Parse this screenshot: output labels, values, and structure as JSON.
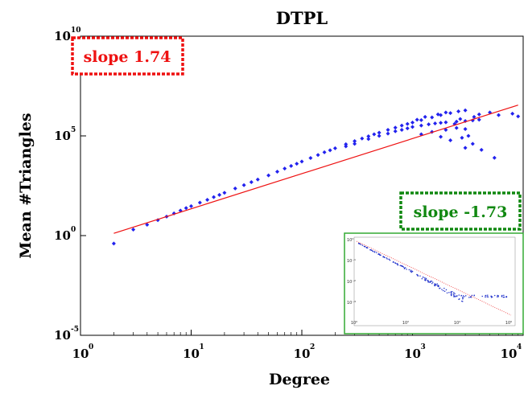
{
  "chart_data": {
    "type": "scatter",
    "title": "DTPL",
    "xlabel": "Degree",
    "ylabel": "Mean #Triangles",
    "xscale": "log",
    "yscale": "log",
    "xlim": [
      1,
      10000
    ],
    "ylim": [
      1e-05,
      10000000000
    ],
    "xticks": [
      1,
      10,
      100,
      1000,
      10000
    ],
    "xtick_base": "10",
    "xtick_exps": [
      "0",
      "1",
      "2",
      "3",
      "4"
    ],
    "yticks": [
      1e-05,
      1,
      100000,
      10000000000
    ],
    "ytick_base": "10",
    "ytick_exps": [
      "-5",
      "0",
      "5",
      "10"
    ],
    "grid": false,
    "series": [
      {
        "kind": "points",
        "color": "#2222ee",
        "points": [
          [
            2,
            0.4
          ],
          [
            3,
            2
          ],
          [
            4,
            3.5
          ],
          [
            5,
            6
          ],
          [
            6,
            9
          ],
          [
            7,
            13
          ],
          [
            8,
            18
          ],
          [
            9,
            24
          ],
          [
            10,
            30
          ],
          [
            12,
            45
          ],
          [
            14,
            62
          ],
          [
            16,
            85
          ],
          [
            18,
            110
          ],
          [
            20,
            140
          ],
          [
            25,
            230
          ],
          [
            30,
            340
          ],
          [
            35,
            480
          ],
          [
            40,
            650
          ],
          [
            50,
            1050
          ],
          [
            60,
            1600
          ],
          [
            70,
            2300
          ],
          [
            80,
            3100
          ],
          [
            90,
            4000
          ],
          [
            100,
            5200
          ],
          [
            120,
            7800
          ],
          [
            140,
            11000
          ],
          [
            160,
            15000
          ],
          [
            180,
            19000
          ],
          [
            200,
            24000
          ],
          [
            250,
            38000
          ],
          [
            300,
            55000
          ],
          [
            350,
            74000
          ],
          [
            400,
            95000
          ],
          [
            450,
            120000
          ],
          [
            500,
            145000
          ],
          [
            600,
            200000
          ],
          [
            700,
            260000
          ],
          [
            800,
            330000
          ],
          [
            900,
            400000
          ],
          [
            1000,
            470000
          ],
          [
            1200,
            620000
          ],
          [
            1500,
            850000
          ],
          [
            1800,
            1100000
          ],
          [
            2200,
            1400000
          ],
          [
            2600,
            1700000
          ],
          [
            3000,
            1900000
          ],
          [
            250,
            30000
          ],
          [
            300,
            40000
          ],
          [
            400,
            70000
          ],
          [
            500,
            100000
          ],
          [
            600,
            130000
          ],
          [
            700,
            170000
          ],
          [
            800,
            200000
          ],
          [
            900,
            240000
          ],
          [
            1000,
            280000
          ],
          [
            1200,
            330000
          ],
          [
            1400,
            380000
          ],
          [
            1600,
            420000
          ],
          [
            1800,
            450000
          ],
          [
            2000,
            480000
          ],
          [
            2500,
            520000
          ],
          [
            3000,
            560000
          ],
          [
            3500,
            600000
          ],
          [
            4000,
            650000
          ],
          [
            1200,
            120000
          ],
          [
            1500,
            160000
          ],
          [
            2000,
            200000
          ],
          [
            2500,
            250000
          ],
          [
            3000,
            220000
          ],
          [
            1800,
            90000
          ],
          [
            2200,
            60000
          ],
          [
            2800,
            80000
          ],
          [
            3200,
            100000
          ],
          [
            3600,
            900000
          ],
          [
            4000,
            1200000
          ],
          [
            5000,
            1500000
          ],
          [
            6000,
            1100000
          ],
          [
            8000,
            1300000
          ],
          [
            9000,
            950000
          ],
          [
            3000,
            25000
          ],
          [
            3500,
            40000
          ],
          [
            4200,
            20000
          ],
          [
            5500,
            8000
          ],
          [
            2400,
            400000
          ],
          [
            2700,
            700000
          ],
          [
            1100,
            650000
          ],
          [
            1300,
            900000
          ],
          [
            1700,
            1200000
          ],
          [
            2000,
            1500000
          ]
        ]
      },
      {
        "kind": "fit-line",
        "color": "#ee1111",
        "points": [
          [
            2,
            1.3
          ],
          [
            9000,
            3500000
          ]
        ]
      }
    ],
    "annotations": [
      {
        "text": "slope 1.74",
        "color": "#ee1111"
      },
      {
        "text": "slope -1.73",
        "color": "#118811"
      }
    ],
    "inset": {
      "type": "scatter",
      "xscale": "log",
      "yscale": "log",
      "border_color": "#33aa33",
      "xtick_labels": [
        "10⁰",
        "10²",
        "10⁴",
        "10⁶"
      ],
      "ytick_labels": [
        "10⁰",
        "10⁻¹",
        "10⁻²",
        "10⁻³"
      ]
    }
  }
}
